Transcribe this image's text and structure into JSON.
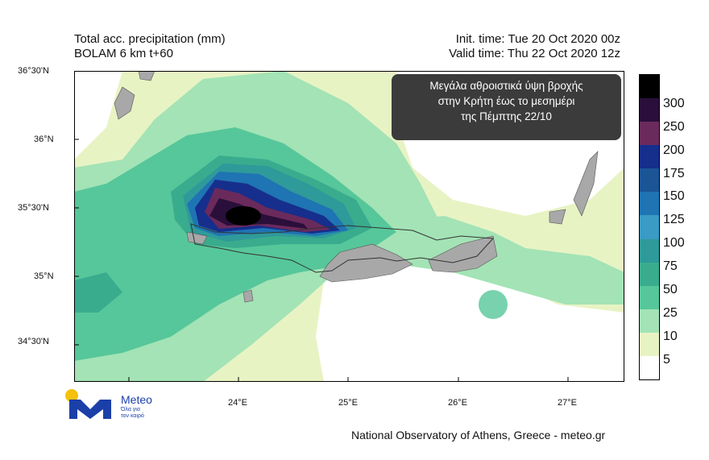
{
  "header": {
    "title_line1": "Total acc. precipitation (mm)",
    "title_line2": "BOLAM 6 km t+60",
    "init_time": "Init. time: Tue 20 Oct 2020 00z",
    "valid_time": "Valid time: Thu 22 Oct 2020 12z"
  },
  "banner": {
    "line1": "Μεγάλα αθροιστικά  ύψη βροχής",
    "line2": "στην Κρήτη έως το μεσημέρι",
    "line3": "της Πέμπτης 22/10"
  },
  "axes": {
    "lat_labels": [
      "36°30'N",
      "36°N",
      "35°30'N",
      "35°N",
      "34°30'N"
    ],
    "lon_labels": [
      "24°E",
      "25°E",
      "26°E",
      "27°E"
    ]
  },
  "legend": {
    "levels": [
      "300",
      "250",
      "200",
      "175",
      "150",
      "125",
      "100",
      "75",
      "50",
      "25",
      "10",
      "5"
    ],
    "colors": [
      "#000000",
      "#2a0f3a",
      "#6b2a5c",
      "#162e8c",
      "#1c5596",
      "#1f74b3",
      "#3a9bc4",
      "#2f9a9a",
      "#3aac8e",
      "#56c79a",
      "#a3e3b5",
      "#e8f3c4",
      "#ffffff"
    ]
  },
  "logo": {
    "name": "Meteo",
    "tagline_1": "Όλα για",
    "tagline_2": "τον καιρό"
  },
  "footer": {
    "credit": "National Observatory of Athens, Greece - meteo.gr"
  }
}
